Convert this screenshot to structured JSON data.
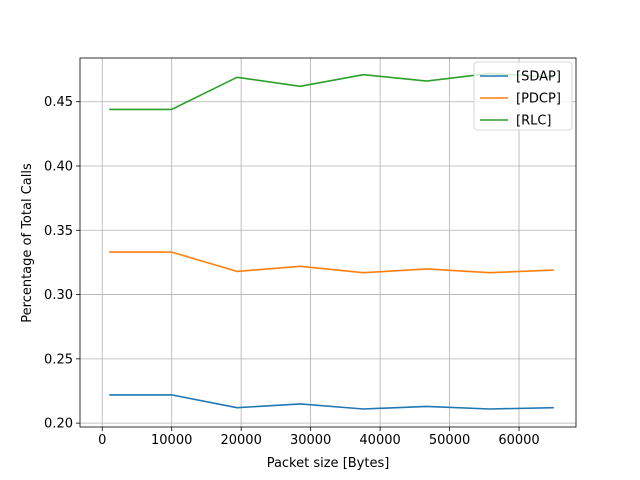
{
  "chart_data": {
    "type": "line",
    "title": "",
    "xlabel": "Packet size [Bytes]",
    "ylabel": "Percentage of Total Calls",
    "xlim": [
      -3200,
      68200
    ],
    "ylim": [
      0.197,
      0.484
    ],
    "xticks": [
      0,
      10000,
      20000,
      30000,
      40000,
      50000,
      60000
    ],
    "xtick_labels": [
      "0",
      "10000",
      "20000",
      "30000",
      "40000",
      "50000",
      "60000"
    ],
    "yticks": [
      0.2,
      0.25,
      0.3,
      0.35,
      0.4,
      0.45
    ],
    "ytick_labels": [
      "0.20",
      "0.25",
      "0.30",
      "0.35",
      "0.40",
      "0.45"
    ],
    "grid": true,
    "legend_position": "top-right",
    "x": [
      1000,
      10000,
      19400,
      28500,
      37600,
      46700,
      55800,
      65000
    ],
    "series": [
      {
        "name": "[SDAP]",
        "color": "#1f77b4",
        "values": [
          0.222,
          0.222,
          0.212,
          0.215,
          0.211,
          0.213,
          0.211,
          0.212
        ]
      },
      {
        "name": "[PDCP]",
        "color": "#ff7f0e",
        "values": [
          0.333,
          0.333,
          0.318,
          0.322,
          0.317,
          0.32,
          0.317,
          0.319
        ]
      },
      {
        "name": "[RLC]",
        "color": "#2ca02c",
        "values": [
          0.444,
          0.444,
          0.469,
          0.462,
          0.471,
          0.466,
          0.472,
          0.469
        ]
      }
    ]
  }
}
